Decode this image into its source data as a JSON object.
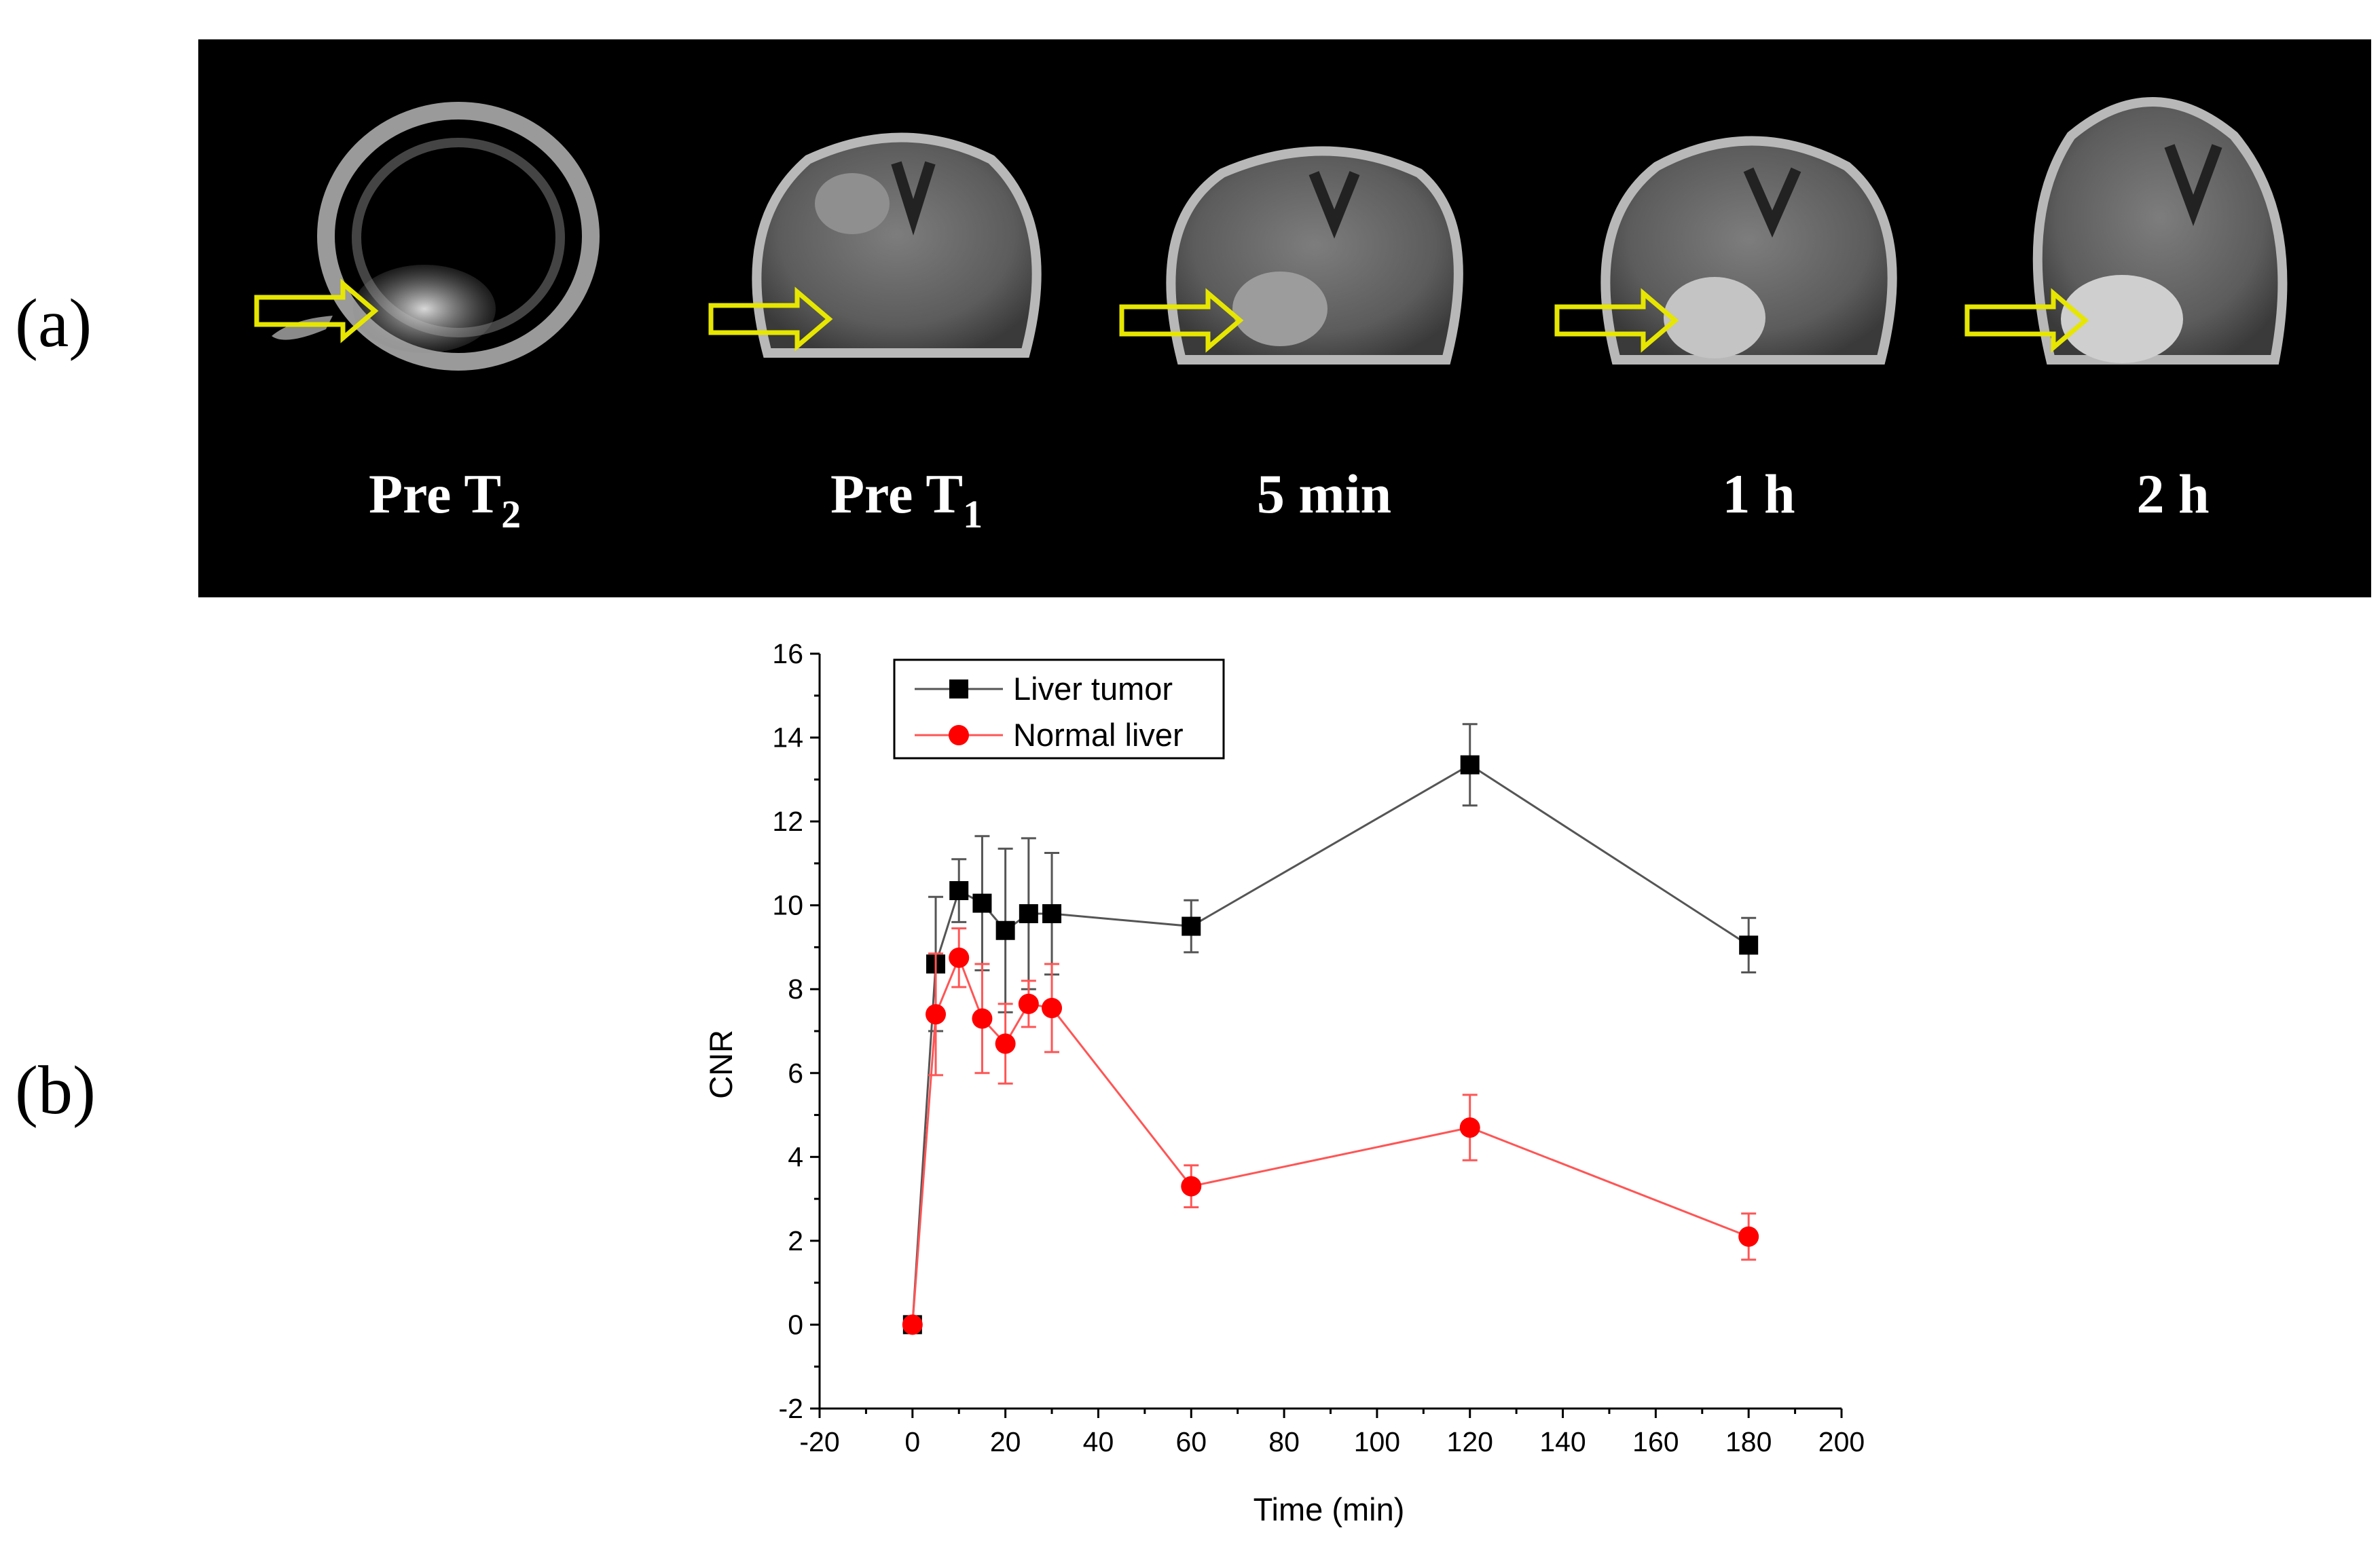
{
  "panel_a": {
    "label": "(a)",
    "frames": [
      {
        "title_main": "Pre T",
        "title_sub": "2"
      },
      {
        "title_main": "Pre T",
        "title_sub": "1"
      },
      {
        "title_main": "5 min",
        "title_sub": ""
      },
      {
        "title_main": "1 h",
        "title_sub": ""
      },
      {
        "title_main": "2 h",
        "title_sub": ""
      }
    ],
    "arrow_color": "#e6e600",
    "background_color": "#000000"
  },
  "panel_b": {
    "label": "(b)"
  },
  "chart_data": {
    "type": "line",
    "xlabel": "Time (min)",
    "ylabel": "CNR",
    "xlim": [
      -20,
      200
    ],
    "ylim": [
      -2,
      16
    ],
    "xticks": [
      -20,
      0,
      20,
      40,
      60,
      80,
      100,
      120,
      140,
      160,
      180,
      200
    ],
    "yticks": [
      -2,
      0,
      2,
      4,
      6,
      8,
      10,
      12,
      14,
      16
    ],
    "grid": false,
    "legend_position": "top-left",
    "series": [
      {
        "name": "Liver tumor",
        "color": "#000000",
        "line_color": "#555555",
        "marker": "square",
        "x": [
          0,
          5,
          10,
          15,
          20,
          25,
          30,
          60,
          120,
          180
        ],
        "y": [
          0,
          8.6,
          10.35,
          10.05,
          9.4,
          9.8,
          9.8,
          9.5,
          13.35,
          9.05
        ],
        "error": [
          0,
          1.6,
          0.75,
          1.6,
          1.95,
          1.8,
          1.45,
          0.62,
          0.97,
          0.65
        ]
      },
      {
        "name": "Normal liver",
        "color": "#ff0000",
        "line_color": "#ff5555",
        "marker": "circle",
        "x": [
          0,
          5,
          10,
          15,
          20,
          25,
          30,
          60,
          120,
          180
        ],
        "y": [
          0,
          7.4,
          8.75,
          7.3,
          6.7,
          7.65,
          7.55,
          3.3,
          4.7,
          2.1
        ],
        "error": [
          0,
          1.45,
          0.7,
          1.3,
          0.95,
          0.55,
          1.05,
          0.5,
          0.78,
          0.55
        ]
      }
    ]
  }
}
